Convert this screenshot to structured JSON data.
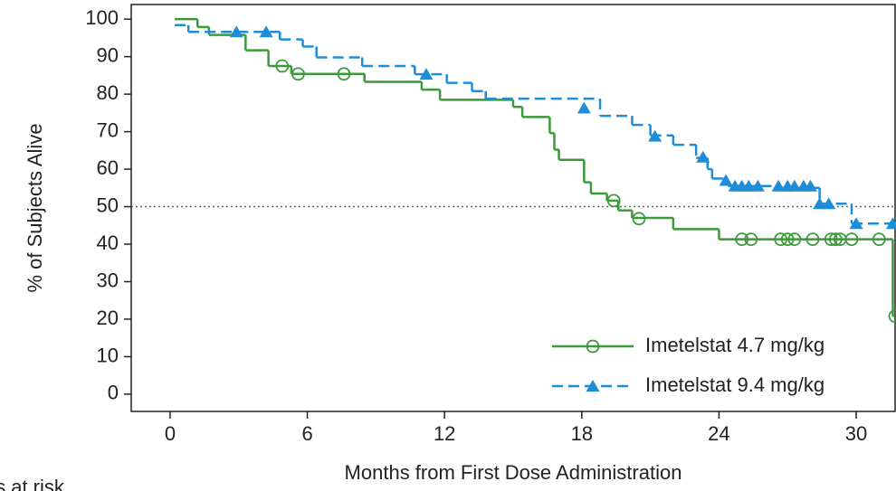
{
  "chart_data": {
    "type": "km",
    "xlabel": "Months from First Dose Administration",
    "ylabel": "% of Subjects Alive",
    "footnote": "cts at risk",
    "xlim": [
      -1.7,
      31.7
    ],
    "ylim": [
      -4.6,
      103.9
    ],
    "xticks": [
      0,
      6,
      12,
      18,
      24,
      30
    ],
    "yticks": [
      0,
      10,
      20,
      30,
      40,
      50,
      60,
      70,
      80,
      90,
      100
    ],
    "reference_line": 50,
    "legend": "lower right",
    "series": [
      {
        "name": "Imetelstat 4.7 mg/kg",
        "color": "#3a9a3a",
        "linestyle": "solid",
        "marker": "circle",
        "x": [
          0.2,
          1.2,
          1.7,
          3.3,
          4.3,
          5.3,
          8.5,
          11.0,
          11.8,
          15.0,
          15.4,
          16.6,
          16.8,
          17.0,
          18.1,
          18.4,
          19.1,
          19.6,
          20.2,
          22.0,
          24.0,
          31.6,
          31.7
        ],
        "y": [
          100,
          97.9,
          95.8,
          91.7,
          87.5,
          85.4,
          83.3,
          81.2,
          78.5,
          76.6,
          73.9,
          69.6,
          65.2,
          62.5,
          56.5,
          53.5,
          51.6,
          49.0,
          47.0,
          44.0,
          41.3,
          20.8,
          20.8
        ],
        "censor_x": [
          4.9,
          5.6,
          7.6,
          19.4,
          20.5,
          25.0,
          25.4,
          26.7,
          27.0,
          27.3,
          28.1,
          28.9,
          29.1,
          29.3,
          29.8,
          31.0,
          31.7
        ],
        "censor_y": [
          87.5,
          85.4,
          85.4,
          51.6,
          46.8,
          41.3,
          41.3,
          41.3,
          41.3,
          41.3,
          41.3,
          41.3,
          41.3,
          41.3,
          41.3,
          41.3,
          20.8
        ]
      },
      {
        "name": "Imetelstat 9.4 mg/kg",
        "color": "#1f8dd6",
        "linestyle": "dashed",
        "marker": "triangle",
        "x": [
          0.2,
          0.8,
          4.8,
          5.8,
          6.4,
          8.4,
          10.7,
          12.1,
          13.2,
          13.8,
          18.8,
          20.2,
          21.0,
          22.0,
          23.0,
          23.5,
          23.7,
          24.2,
          24.4,
          26.6,
          28.4,
          29.8,
          31.7
        ],
        "y": [
          98.4,
          96.6,
          94.6,
          92.7,
          89.8,
          87.5,
          85.3,
          83.0,
          80.8,
          78.8,
          74.2,
          71.8,
          69.0,
          66.5,
          63.0,
          60.0,
          57.5,
          56.8,
          55.5,
          55.0,
          50.8,
          45.5,
          45.5
        ],
        "censor_x": [
          2.9,
          4.2,
          11.2,
          18.1,
          21.2,
          23.3,
          24.3,
          24.7,
          25.0,
          25.3,
          25.7,
          26.6,
          27.0,
          27.3,
          27.7,
          28.0,
          28.4,
          28.8,
          30.0,
          31.6
        ],
        "censor_y": [
          96.6,
          96.6,
          85.3,
          76.3,
          68.8,
          63.2,
          57.0,
          55.5,
          55.5,
          55.5,
          55.5,
          55.5,
          55.5,
          55.5,
          55.5,
          55.5,
          50.8,
          50.8,
          45.5,
          45.5
        ]
      }
    ]
  }
}
